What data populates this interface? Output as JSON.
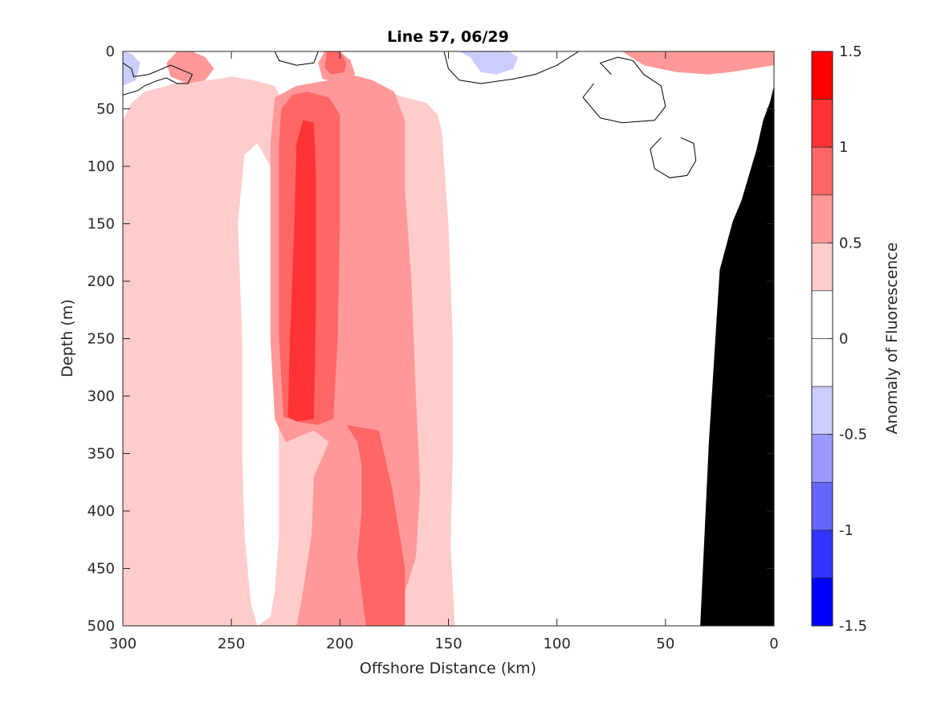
{
  "chart_data": {
    "type": "heatmap",
    "title": "Line 57, 06/29",
    "xlabel": "Offshore Distance (km)",
    "ylabel": "Depth (m)",
    "colorbar_label": "Anomaly of Fluorescence",
    "xlim": [
      300,
      0
    ],
    "ylim": [
      500,
      0
    ],
    "x_reversed": true,
    "y_reversed": true,
    "x_ticks": [
      300,
      250,
      200,
      150,
      100,
      50,
      0
    ],
    "x_tick_labels": [
      "300",
      "250",
      "200",
      "150",
      "100",
      "50",
      "0"
    ],
    "y_ticks": [
      0,
      50,
      100,
      150,
      200,
      250,
      300,
      350,
      400,
      450,
      500
    ],
    "y_tick_labels": [
      "0",
      "50",
      "100",
      "150",
      "200",
      "250",
      "300",
      "350",
      "400",
      "450",
      "500"
    ],
    "colorbar_range": [
      -1.5,
      1.5
    ],
    "colorbar_ticks": [
      1.5,
      1,
      0.5,
      0,
      -0.5,
      -1,
      -1.5
    ],
    "colorbar_tick_labels": [
      "1.5",
      "1",
      "0.5",
      "0",
      "-0.5",
      "-1",
      "-1.5"
    ],
    "levels": [
      {
        "range": [
          1.25,
          1.5
        ],
        "color": "#ff0000"
      },
      {
        "range": [
          1.0,
          1.25
        ],
        "color": "#ff3333"
      },
      {
        "range": [
          0.75,
          1.0
        ],
        "color": "#ff6666"
      },
      {
        "range": [
          0.5,
          0.75
        ],
        "color": "#ff9999"
      },
      {
        "range": [
          0.25,
          0.5
        ],
        "color": "#ffcccc"
      },
      {
        "range": [
          0.0,
          0.25
        ],
        "color": "#ffffff"
      },
      {
        "range": [
          -0.25,
          0.0
        ],
        "color": "#ffffff"
      },
      {
        "range": [
          -0.5,
          -0.25
        ],
        "color": "#ccccff"
      },
      {
        "range": [
          -0.75,
          -0.5
        ],
        "color": "#9999ff"
      },
      {
        "range": [
          -1.0,
          -0.75
        ],
        "color": "#6666ff"
      },
      {
        "range": [
          -1.25,
          -1.0
        ],
        "color": "#3333ff"
      },
      {
        "range": [
          -1.5,
          -1.25
        ],
        "color": "#0000ff"
      }
    ],
    "regions": [
      {
        "name": "band-west-pale",
        "value": 0.4,
        "points": [
          [
            300,
            60
          ],
          [
            296,
            45
          ],
          [
            290,
            35
          ],
          [
            280,
            30
          ],
          [
            270,
            25
          ],
          [
            260,
            25
          ],
          [
            250,
            22
          ],
          [
            240,
            25
          ],
          [
            230,
            30
          ],
          [
            225,
            50
          ],
          [
            210,
            30
          ],
          [
            195,
            35
          ],
          [
            185,
            30
          ],
          [
            178,
            35
          ],
          [
            170,
            40
          ],
          [
            160,
            45
          ],
          [
            155,
            55
          ],
          [
            153,
            70
          ],
          [
            150,
            150
          ],
          [
            148,
            250
          ],
          [
            148,
            350
          ],
          [
            149,
            430
          ],
          [
            147,
            500
          ],
          [
            300,
            500
          ]
        ]
      },
      {
        "name": "band-west-pale-gap",
        "value": 0.1,
        "points": [
          [
            238,
            80
          ],
          [
            244,
            90
          ],
          [
            247,
            150
          ],
          [
            245,
            250
          ],
          [
            245,
            350
          ],
          [
            244,
            420
          ],
          [
            241,
            480
          ],
          [
            238,
            500
          ],
          [
            232,
            492
          ],
          [
            230,
            470
          ],
          [
            228,
            420
          ],
          [
            228,
            350
          ],
          [
            229,
            250
          ],
          [
            230,
            160
          ],
          [
            232,
            100
          ]
        ]
      },
      {
        "name": "band-mid-medium",
        "value": 0.6,
        "points": [
          [
            230,
            40
          ],
          [
            220,
            30
          ],
          [
            205,
            25
          ],
          [
            195,
            20
          ],
          [
            185,
            25
          ],
          [
            175,
            35
          ],
          [
            170,
            60
          ],
          [
            170,
            120
          ],
          [
            167,
            200
          ],
          [
            165,
            300
          ],
          [
            163,
            380
          ],
          [
            165,
            440
          ],
          [
            175,
            500
          ],
          [
            220,
            500
          ],
          [
            217,
            470
          ],
          [
            213,
            420
          ],
          [
            212,
            370
          ],
          [
            205,
            340
          ],
          [
            212,
            330
          ],
          [
            225,
            340
          ],
          [
            230,
            320
          ],
          [
            232,
            250
          ],
          [
            232,
            150
          ],
          [
            232,
            80
          ]
        ]
      },
      {
        "name": "band-mid-strong",
        "value": 0.85,
        "points": [
          [
            222,
            38
          ],
          [
            215,
            35
          ],
          [
            205,
            40
          ],
          [
            200,
            55
          ],
          [
            200,
            150
          ],
          [
            201,
            250
          ],
          [
            203,
            320
          ],
          [
            210,
            325
          ],
          [
            218,
            323
          ],
          [
            226,
            318
          ],
          [
            228,
            250
          ],
          [
            228,
            150
          ],
          [
            228,
            80
          ],
          [
            227,
            50
          ]
        ]
      },
      {
        "name": "band-mid-core",
        "value": 1.1,
        "points": [
          [
            217,
            60
          ],
          [
            212,
            62
          ],
          [
            211,
            110
          ],
          [
            211,
            220
          ],
          [
            212,
            320
          ],
          [
            220,
            322
          ],
          [
            224,
            318
          ],
          [
            223,
            250
          ],
          [
            221,
            150
          ],
          [
            220,
            80
          ]
        ]
      },
      {
        "name": "band-deep-medium",
        "value": 0.75,
        "points": [
          [
            197,
            325
          ],
          [
            192,
            340
          ],
          [
            190,
            360
          ],
          [
            190,
            400
          ],
          [
            192,
            440
          ],
          [
            190,
            470
          ],
          [
            188,
            500
          ],
          [
            170,
            500
          ],
          [
            170,
            450
          ],
          [
            176,
            380
          ],
          [
            182,
            330
          ]
        ]
      },
      {
        "name": "band-deep-strong",
        "value": 0.9,
        "points": [
          [
            195,
            330
          ],
          [
            188,
            350
          ],
          [
            186,
            400
          ],
          [
            184,
            440
          ],
          [
            183,
            480
          ],
          [
            182,
            500
          ],
          [
            175,
            500
          ],
          [
            177,
            450
          ],
          [
            180,
            380
          ],
          [
            190,
            335
          ]
        ]
      },
      {
        "name": "surface-patch-a",
        "value": 0.6,
        "points": [
          [
            268,
            0
          ],
          [
            262,
            5
          ],
          [
            258,
            15
          ],
          [
            262,
            25
          ],
          [
            270,
            28
          ],
          [
            278,
            22
          ],
          [
            280,
            10
          ],
          [
            275,
            0
          ]
        ]
      },
      {
        "name": "surface-patch-b",
        "value": 0.6,
        "points": [
          [
            200,
            0
          ],
          [
            195,
            8
          ],
          [
            193,
            20
          ],
          [
            200,
            28
          ],
          [
            208,
            24
          ],
          [
            210,
            10
          ],
          [
            207,
            0
          ]
        ]
      },
      {
        "name": "surface-patch-c",
        "value": 0.9,
        "points": [
          [
            200,
            0
          ],
          [
            197,
            10
          ],
          [
            198,
            18
          ],
          [
            204,
            20
          ],
          [
            207,
            14
          ],
          [
            206,
            0
          ]
        ]
      },
      {
        "name": "surface-patch-nearshore",
        "value": 0.5,
        "points": [
          [
            70,
            0
          ],
          [
            60,
            12
          ],
          [
            45,
            18
          ],
          [
            30,
            20
          ],
          [
            20,
            18
          ],
          [
            10,
            15
          ],
          [
            0,
            12
          ],
          [
            0,
            0
          ]
        ]
      },
      {
        "name": "surface-patch-nearshore-strong",
        "value": 0.6,
        "points": [
          [
            55,
            0
          ],
          [
            48,
            8
          ],
          [
            35,
            12
          ],
          [
            25,
            8
          ],
          [
            15,
            5
          ],
          [
            5,
            4
          ],
          [
            0,
            3
          ],
          [
            0,
            0
          ]
        ]
      },
      {
        "name": "blue-patch-west",
        "value": -0.3,
        "points": [
          [
            300,
            0
          ],
          [
            296,
            2
          ],
          [
            292,
            10
          ],
          [
            294,
            25
          ],
          [
            300,
            30
          ]
        ]
      },
      {
        "name": "blue-patch-east",
        "value": -0.4,
        "points": [
          [
            145,
            0
          ],
          [
            140,
            5
          ],
          [
            135,
            18
          ],
          [
            128,
            20
          ],
          [
            120,
            15
          ],
          [
            118,
            5
          ],
          [
            122,
            0
          ]
        ]
      }
    ],
    "zero_contours": [
      {
        "name": "contour-west",
        "points": [
          [
            300,
            38
          ],
          [
            293,
            34
          ],
          [
            290,
            30
          ],
          [
            285,
            26
          ],
          [
            280,
            23
          ],
          [
            275,
            28
          ],
          [
            270,
            28
          ],
          [
            268,
            20
          ],
          [
            278,
            12
          ],
          [
            288,
            20
          ],
          [
            295,
            22
          ],
          [
            296,
            15
          ],
          [
            300,
            10
          ]
        ]
      },
      {
        "name": "contour-mid-top",
        "points": [
          [
            230,
            0
          ],
          [
            228,
            8
          ],
          [
            220,
            12
          ],
          [
            212,
            10
          ],
          [
            210,
            0
          ]
        ]
      },
      {
        "name": "contour-east-surface",
        "points": [
          [
            152,
            0
          ],
          [
            150,
            15
          ],
          [
            145,
            25
          ],
          [
            135,
            28
          ],
          [
            120,
            24
          ],
          [
            110,
            20
          ],
          [
            100,
            12
          ],
          [
            90,
            0
          ]
        ]
      },
      {
        "name": "contour-east-loop",
        "points": [
          [
            75,
            20
          ],
          [
            80,
            10
          ],
          [
            72,
            5
          ],
          [
            65,
            8
          ],
          [
            60,
            20
          ],
          [
            52,
            30
          ],
          [
            50,
            48
          ],
          [
            55,
            60
          ],
          [
            70,
            62
          ],
          [
            80,
            58
          ],
          [
            88,
            40
          ],
          [
            83,
            28
          ]
        ]
      },
      {
        "name": "contour-east-small",
        "points": [
          [
            43,
            75
          ],
          [
            37,
            80
          ],
          [
            36,
            95
          ],
          [
            40,
            108
          ],
          [
            48,
            110
          ],
          [
            55,
            102
          ],
          [
            57,
            85
          ],
          [
            52,
            75
          ]
        ]
      }
    ],
    "bathymetry": [
      [
        34,
        500
      ],
      [
        30,
        340
      ],
      [
        25,
        190
      ],
      [
        19,
        148
      ],
      [
        15,
        130
      ],
      [
        8,
        85
      ],
      [
        5,
        60
      ],
      [
        2,
        45
      ],
      [
        0,
        30
      ],
      [
        0,
        500
      ]
    ]
  }
}
